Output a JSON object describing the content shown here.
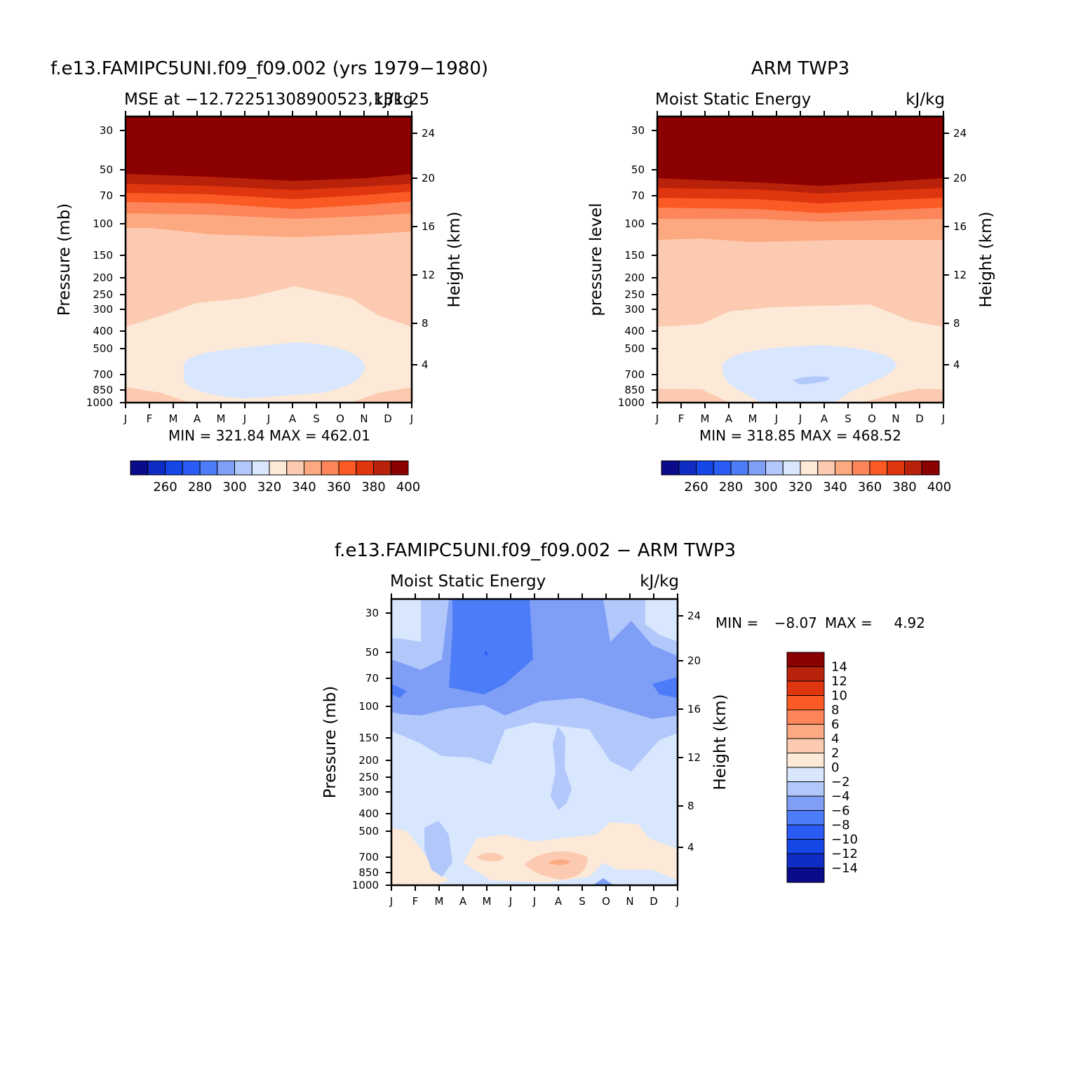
{
  "colors": {
    "mse_scale": [
      "#0a0a8a",
      "#0f2cc4",
      "#1546e6",
      "#2a5cf5",
      "#4c7cf8",
      "#7f9ff7",
      "#b2c8fb",
      "#d8e7fd",
      "#fde9d8",
      "#fccab0",
      "#fca880",
      "#fc8559",
      "#fb5a24",
      "#e0360f",
      "#b8220a",
      "#8b0000"
    ],
    "diff_scale": [
      "#0a0a8a",
      "#0f2cc4",
      "#1546e6",
      "#2a5cf5",
      "#4c7cf8",
      "#7f9ff7",
      "#b2c8fb",
      "#d8e7fd",
      "#fde9d8",
      "#fccab0",
      "#fca880",
      "#fc8559",
      "#fb5a24",
      "#e0360f",
      "#b8220a",
      "#8b0000"
    ]
  },
  "chart_data": [
    {
      "type": "heatmap",
      "title": "f.e13.FAMIPC5UNI.f09_f09.002 (yrs 1979−1980)",
      "subtitle_left": "MSE at −12.72251308900523,131.25",
      "subtitle_right": "kJ/kg",
      "ylabel": "Pressure (mb)",
      "ylabel_right": "Height (km)",
      "x_ticks": [
        "J",
        "F",
        "M",
        "A",
        "M",
        "J",
        "J",
        "A",
        "S",
        "O",
        "N",
        "D",
        "J"
      ],
      "y_ticks": [
        "30",
        "50",
        "70",
        "100",
        "150",
        "200",
        "250",
        "300",
        "400",
        "500",
        "700",
        "850",
        "1000"
      ],
      "y_ticks_right": [
        "24",
        "20",
        "16",
        "12",
        "8",
        "4"
      ],
      "stats": "MIN = 321.84  MAX = 462.01",
      "colorbar_labels": [
        "260",
        "280",
        "300",
        "320",
        "340",
        "360",
        "380",
        "400"
      ],
      "colorbar_levels": [
        250,
        260,
        270,
        280,
        290,
        300,
        310,
        320,
        330,
        340,
        350,
        360,
        370,
        380,
        390,
        400
      ],
      "min": 321.84,
      "max": 462.01
    },
    {
      "type": "heatmap",
      "title": "ARM TWP3",
      "subtitle_left": "Moist Static Energy",
      "subtitle_right": "kJ/kg",
      "ylabel": "pressure level",
      "ylabel_right": "Height (km)",
      "x_ticks": [
        "J",
        "F",
        "M",
        "A",
        "M",
        "J",
        "J",
        "A",
        "S",
        "O",
        "N",
        "D",
        "J"
      ],
      "y_ticks": [
        "30",
        "50",
        "70",
        "100",
        "150",
        "200",
        "250",
        "300",
        "400",
        "500",
        "700",
        "850",
        "1000"
      ],
      "y_ticks_right": [
        "24",
        "20",
        "16",
        "12",
        "8",
        "4"
      ],
      "stats": "MIN = 318.85  MAX = 468.52",
      "colorbar_labels": [
        "260",
        "280",
        "300",
        "320",
        "340",
        "360",
        "380",
        "400"
      ],
      "colorbar_levels": [
        250,
        260,
        270,
        280,
        290,
        300,
        310,
        320,
        330,
        340,
        350,
        360,
        370,
        380,
        390,
        400
      ],
      "min": 318.85,
      "max": 468.52
    },
    {
      "type": "heatmap",
      "title": "f.e13.FAMIPC5UNI.f09_f09.002 − ARM TWP3",
      "subtitle_left": "Moist Static Energy",
      "subtitle_right": "kJ/kg",
      "ylabel": "Pressure (mb)",
      "ylabel_right": "Height (km)",
      "x_ticks": [
        "J",
        "F",
        "M",
        "A",
        "M",
        "J",
        "J",
        "A",
        "S",
        "O",
        "N",
        "D",
        "J"
      ],
      "y_ticks": [
        "30",
        "50",
        "70",
        "100",
        "150",
        "200",
        "250",
        "300",
        "400",
        "500",
        "700",
        "850",
        "1000"
      ],
      "y_ticks_right": [
        "24",
        "20",
        "16",
        "12",
        "8",
        "4"
      ],
      "stats_min_label": "MIN =",
      "stats_min": "−8.07",
      "stats_max_label": "MAX =",
      "stats_max": "4.92",
      "colorbar_labels": [
        "14",
        "12",
        "10",
        "8",
        "6",
        "4",
        "2",
        "0",
        "−2",
        "−4",
        "−6",
        "−8",
        "−10",
        "−12",
        "−14"
      ],
      "min": -8.07,
      "max": 4.92
    }
  ]
}
